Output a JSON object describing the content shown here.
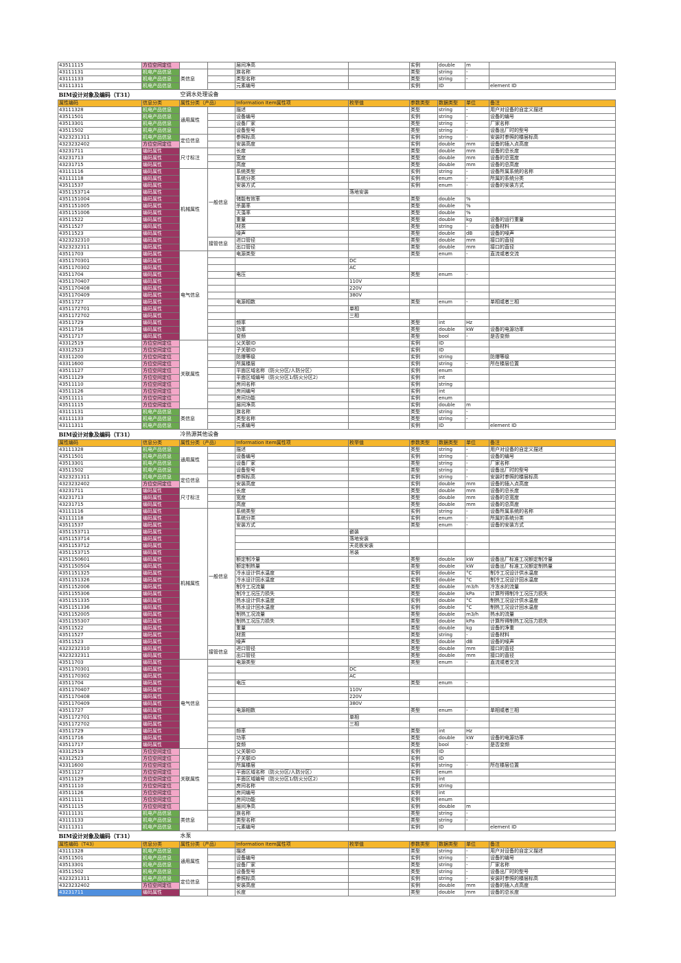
{
  "header": [
    "属性编码",
    "信息分类",
    "属性分类（产品）",
    "",
    "Information Item属性项",
    "枚举值",
    "参数类型",
    "数据类型",
    "单位",
    "备注"
  ],
  "sections": [
    {
      "title": "BIM设计对象及编码（T31）",
      "subtitle": "空调水处理设备"
    },
    {
      "title": "BIM设计对象及编码（T31）",
      "subtitle": "冷热源其他设备"
    },
    {
      "title": "BIM设计对象及编码（T31）",
      "subtitle": "水泵"
    }
  ],
  "categories": {
    "general": "通用属性",
    "position": "定位信息",
    "size": "尺寸标注",
    "mechanical": "机械属性",
    "general_info": "一般信息",
    "pipe": "接管信息",
    "electric": "电气信息",
    "relation": "关联属性",
    "class": "类信息"
  },
  "rows_top": [
    [
      "43511115",
      "方位空间定位",
      "层间净高",
      "实例",
      "double",
      "m",
      ""
    ],
    [
      "43111131",
      "机电产品信息",
      "族名称",
      "类型",
      "string",
      "-",
      ""
    ],
    [
      "43111133",
      "机电产品信息",
      "类型名称",
      "类型",
      "string",
      "-",
      ""
    ],
    [
      "43111311",
      "机电产品信息",
      "元素编号",
      "实例",
      "ID",
      "",
      "element ID"
    ]
  ],
  "rows_s1": [
    [
      "43111328",
      "机电产品信息",
      "描述",
      "",
      "类型",
      "string",
      "-",
      "用户对设备的自定义描述"
    ],
    [
      "43511501",
      "机电产品信息",
      "设备编号",
      "",
      "实例",
      "string",
      "-",
      "设备的编号"
    ],
    [
      "43513301",
      "机电产品信息",
      "设备厂家",
      "",
      "类型",
      "string",
      "-",
      "厂家名称"
    ],
    [
      "43511502",
      "机电产品信息",
      "设备型号",
      "",
      "类型",
      "string",
      "-",
      "设备出厂时的型号"
    ],
    [
      "4323231311",
      "机电产品信息",
      "参照标高",
      "",
      "实例",
      "string",
      "-",
      "安装时参照的楼层标高"
    ],
    [
      "4323232402",
      "方位空间定位",
      "安装高度",
      "",
      "实例",
      "double",
      "mm",
      "设备的插入点高度"
    ],
    [
      "43231711",
      "编码属性",
      "长度",
      "",
      "类型",
      "double",
      "mm",
      "设备的总长度"
    ],
    [
      "43231713",
      "编码属性",
      "宽度",
      "",
      "类型",
      "double",
      "mm",
      "设备的总宽度"
    ],
    [
      "43231715",
      "编码属性",
      "高度",
      "",
      "类型",
      "double",
      "mm",
      "设备的总高度"
    ],
    [
      "43111116",
      "编码属性",
      "系统类型",
      "",
      "实例",
      "string",
      "-",
      "设备所属系统的名称"
    ],
    [
      "43111118",
      "编码属性",
      "系统分类",
      "",
      "实例",
      "enum",
      "-",
      "所属的系统分类"
    ],
    [
      "43511537",
      "编码属性",
      "安装方式",
      "",
      "实例",
      "enum",
      "-",
      "设备的安装方式"
    ],
    [
      "435115371 4",
      "编码属性",
      "",
      "落地安装",
      "",
      "",
      "",
      ""
    ],
    [
      "435115100 4",
      "编码属性",
      "储能有效率",
      "",
      "类型",
      "double",
      "%",
      ""
    ],
    [
      "435115100 5",
      "编码属性",
      "杀菌率",
      "",
      "类型",
      "double",
      "%",
      ""
    ],
    [
      "435115100 6",
      "编码属性",
      "灭藻率",
      "",
      "类型",
      "double",
      "%",
      ""
    ],
    [
      "43511522",
      "编码属性",
      "重量",
      "",
      "类型",
      "double",
      "kg",
      "设备的运行重量"
    ],
    [
      "43511527",
      "编码属性",
      "材质",
      "",
      "类型",
      "string",
      "-",
      "设备材料"
    ],
    [
      "43511523",
      "编码属性",
      "噪声",
      "",
      "类型",
      "double",
      "dB",
      "设备的噪声"
    ],
    [
      "4323232310",
      "编码属性",
      "进口管径",
      "",
      "类型",
      "double",
      "mm",
      "接口的直径"
    ],
    [
      "4323232311",
      "编码属性",
      "出口管径",
      "",
      "类型",
      "double",
      "mm",
      "接口的直径"
    ],
    [
      "43511703",
      "编码属性",
      "电源类型",
      "",
      "类型",
      "enum",
      "-",
      "直流或者交流"
    ],
    [
      "435117030 1",
      "编码属性",
      "",
      "DC",
      "",
      "",
      "",
      ""
    ],
    [
      "435117030 2",
      "编码属性",
      "",
      "AC",
      "",
      "",
      "",
      ""
    ],
    [
      "43511704",
      "编码属性",
      "电压",
      "",
      "类型",
      "enum",
      "-",
      ""
    ],
    [
      "435117040 7",
      "编码属性",
      "",
      "110V",
      "",
      "",
      "",
      ""
    ],
    [
      "435117040 8",
      "编码属性",
      "",
      "220V",
      "",
      "",
      "",
      ""
    ],
    [
      "435117040 9",
      "编码属性",
      "",
      "380V",
      "",
      "",
      "",
      ""
    ],
    [
      "43511727",
      "编码属性",
      "电源相数",
      "",
      "类型",
      "enum",
      "-",
      "单相或者三相"
    ],
    [
      "435117270 1",
      "编码属性",
      "",
      "单相",
      "",
      "",
      "",
      ""
    ],
    [
      "435117270 2",
      "编码属性",
      "",
      "三相",
      "",
      "",
      "",
      ""
    ],
    [
      "43511729",
      "编码属性",
      "频率",
      "",
      "类型",
      "int",
      "Hz",
      ""
    ],
    [
      "43511716",
      "编码属性",
      "功率",
      "",
      "类型",
      "double",
      "kW",
      "设备的电源功率"
    ],
    [
      "43511717",
      "编码属性",
      "变频",
      "",
      "类型",
      "bool",
      "-",
      "是否变频"
    ],
    [
      "43312519",
      "方位空间定位",
      "父关联ID",
      "",
      "实例",
      "ID",
      "",
      ""
    ],
    [
      "43312523",
      "方位空间定位",
      "子关联ID",
      "",
      "实例",
      "ID",
      "",
      ""
    ],
    [
      "43311200",
      "方位空间定位",
      "防爆等级",
      "",
      "实例",
      "string",
      "",
      "防爆等级"
    ],
    [
      "43311600",
      "方位空间定位",
      "所属楼层",
      "",
      "实例",
      "string",
      "-",
      "所在楼层位置"
    ],
    [
      "43511127",
      "方位空间定位",
      "平面区域名称（防火分区/人防分区）",
      "",
      "实例",
      "enum",
      "",
      ""
    ],
    [
      "43511129",
      "方位空间定位",
      "平面区域编号（防火分区1/防火分区2）",
      "",
      "实例",
      "int",
      "",
      ""
    ],
    [
      "43511110",
      "方位空间定位",
      "房间名称",
      "",
      "实例",
      "string",
      "",
      ""
    ],
    [
      "43511126",
      "方位空间定位",
      "房间编号",
      "",
      "实例",
      "int",
      "",
      ""
    ],
    [
      "43511111",
      "方位空间定位",
      "房间功能",
      "",
      "实例",
      "enum",
      "",
      ""
    ],
    [
      "43511115",
      "方位空间定位",
      "层间净高",
      "",
      "实例",
      "double",
      "m",
      ""
    ],
    [
      "43111131",
      "机电产品信息",
      "族名称",
      "",
      "类型",
      "string",
      "-",
      ""
    ],
    [
      "43111133",
      "机电产品信息",
      "类型名称",
      "",
      "类型",
      "string",
      "-",
      ""
    ],
    [
      "43111311",
      "机电产品信息",
      "元素编号",
      "",
      "实例",
      "ID",
      "",
      "element ID"
    ]
  ],
  "rows_s2": [
    [
      "43111328",
      "机电产品信息",
      "描述",
      "",
      "类型",
      "string",
      "-",
      "用户对设备的自定义描述"
    ],
    [
      "43511501",
      "机电产品信息",
      "设备编号",
      "",
      "实例",
      "string",
      "-",
      "设备的编号"
    ],
    [
      "43513301",
      "机电产品信息",
      "设备厂家",
      "",
      "类型",
      "string",
      "-",
      "厂家名称"
    ],
    [
      "43511502",
      "机电产品信息",
      "设备型号",
      "",
      "类型",
      "string",
      "-",
      "设备出厂时的型号"
    ],
    [
      "4323231311",
      "机电产品信息",
      "参照标高",
      "",
      "实例",
      "string",
      "-",
      "安装时参照的楼层标高"
    ],
    [
      "4323232402",
      "方位空间定位",
      "安装高度",
      "",
      "实例",
      "double",
      "mm",
      "设备的插入点高度"
    ],
    [
      "43231711",
      "编码属性",
      "长度",
      "",
      "类型",
      "double",
      "mm",
      "设备的总长度"
    ],
    [
      "43231713",
      "编码属性",
      "宽度",
      "",
      "类型",
      "double",
      "mm",
      "设备的总宽度"
    ],
    [
      "43231715",
      "编码属性",
      "高度",
      "",
      "类型",
      "double",
      "mm",
      "设备的总高度"
    ],
    [
      "43111116",
      "编码属性",
      "系统类型",
      "",
      "实例",
      "string",
      "-",
      "设备所属系统的名称"
    ],
    [
      "43111118",
      "编码属性",
      "系统分类",
      "",
      "实例",
      "enum",
      "-",
      "所属的系统分类"
    ],
    [
      "43511537",
      "编码属性",
      "安装方式",
      "",
      "类型",
      "enum",
      "-",
      "设备的安装方式"
    ],
    [
      "435115371 1",
      "编码属性",
      "",
      "嵌装",
      "",
      "",
      "",
      ""
    ],
    [
      "435115371 4",
      "编码属性",
      "",
      "落地安装",
      "",
      "",
      "",
      ""
    ],
    [
      "435115371 2",
      "编码属性",
      "",
      "天花板安装",
      "",
      "",
      "",
      ""
    ],
    [
      "435115371 5",
      "编码属性",
      "",
      "吊装",
      "",
      "",
      "",
      ""
    ],
    [
      "435115060 1",
      "编码属性",
      "额定制冷量",
      "",
      "类型",
      "double",
      "kW",
      "设备出厂标准工况额定制冷量"
    ],
    [
      "435115050 4",
      "编码属性",
      "额定制热量",
      "",
      "类型",
      "double",
      "kW",
      "设备出厂标准工况额定制热量"
    ],
    [
      "43511513 25",
      "编码属性",
      "冷水设计供水温度",
      "",
      "实例",
      "double",
      "°C",
      "制冷工况设计供水温度"
    ],
    [
      "43511513 26",
      "编码属性",
      "冷水设计回水温度",
      "",
      "实例",
      "double",
      "°C",
      "制冷工况设计回水温度"
    ],
    [
      "435115200 6",
      "编码属性",
      "制冷工况流量",
      "",
      "类型",
      "double",
      "m3/h",
      "冷冻水的流量"
    ],
    [
      "435115530 6",
      "编码属性",
      "制冷工况压力损失",
      "",
      "类型",
      "double",
      "kPa",
      "计算所得制冷工况压力损失"
    ],
    [
      "435115133 5",
      "编码属性",
      "热水设计供水温度",
      "",
      "实例",
      "double",
      "°C",
      "制热工况设计供水温度"
    ],
    [
      "435115133 6",
      "编码属性",
      "热水设计回水温度",
      "",
      "实例",
      "double",
      "°C",
      "制热工况设计回水温度"
    ],
    [
      "435115200 5",
      "编码属性",
      "制热工况流量",
      "",
      "类型",
      "double",
      "m3/h",
      "热水的流量"
    ],
    [
      "435115530 7",
      "编码属性",
      "制热工况压力损失",
      "",
      "类型",
      "double",
      "kPa",
      "计算所得制热工况压力损失"
    ],
    [
      "43511522",
      "编码属性",
      "重量",
      "",
      "类型",
      "double",
      "kg",
      "设备的净重"
    ],
    [
      "43511527",
      "编码属性",
      "材质",
      "",
      "类型",
      "string",
      "-",
      "设备材料"
    ],
    [
      "43511523",
      "编码属性",
      "噪声",
      "",
      "类型",
      "double",
      "dB",
      "设备的噪声"
    ],
    [
      "4323232310",
      "编码属性",
      "进口管径",
      "",
      "类型",
      "double",
      "mm",
      "接口的直径"
    ],
    [
      "4323232311",
      "编码属性",
      "出口管径",
      "",
      "类型",
      "double",
      "mm",
      "接口的直径"
    ],
    [
      "43511703",
      "编码属性",
      "电源类型",
      "",
      "类型",
      "enum",
      "-",
      "直流或者交流"
    ],
    [
      "435117030 1",
      "编码属性",
      "",
      "DC",
      "",
      "",
      "",
      ""
    ],
    [
      "435117030 2",
      "编码属性",
      "",
      "AC",
      "",
      "",
      "",
      ""
    ],
    [
      "43511704",
      "编码属性",
      "电压",
      "",
      "类型",
      "enum",
      "-",
      ""
    ],
    [
      "435117040 7",
      "编码属性",
      "",
      "110V",
      "",
      "",
      "",
      ""
    ],
    [
      "435117040 8",
      "编码属性",
      "",
      "220V",
      "",
      "",
      "",
      ""
    ],
    [
      "435117040 9",
      "编码属性",
      "",
      "380V",
      "",
      "",
      "",
      ""
    ],
    [
      "43511727",
      "编码属性",
      "电源相数",
      "",
      "类型",
      "enum",
      "-",
      "单相或者三相"
    ],
    [
      "435117270 1",
      "编码属性",
      "",
      "单相",
      "",
      "",
      "",
      ""
    ],
    [
      "435117270 2",
      "编码属性",
      "",
      "三相",
      "",
      "",
      "",
      ""
    ],
    [
      "43511729",
      "编码属性",
      "频率",
      "",
      "类型",
      "int",
      "Hz",
      ""
    ],
    [
      "43511716",
      "编码属性",
      "功率",
      "",
      "类型",
      "double",
      "kW",
      "设备的电源功率"
    ],
    [
      "43511717",
      "编码属性",
      "变频",
      "",
      "类型",
      "bool",
      "-",
      "是否变频"
    ],
    [
      "43312519",
      "方位空间定位",
      "父关联ID",
      "",
      "实例",
      "ID",
      "",
      ""
    ],
    [
      "43312523",
      "方位空间定位",
      "子关联ID",
      "",
      "实例",
      "ID",
      "",
      ""
    ],
    [
      "43311600",
      "方位空间定位",
      "所属楼层",
      "",
      "实例",
      "string",
      "-",
      "所在楼层位置"
    ],
    [
      "43511127",
      "方位空间定位",
      "平面区域名称（防火分区/人防分区）",
      "",
      "实例",
      "enum",
      "",
      ""
    ],
    [
      "43511129",
      "方位空间定位",
      "平面区域编号（防火分区1/防火分区2）",
      "",
      "实例",
      "int",
      "",
      ""
    ],
    [
      "43511110",
      "方位空间定位",
      "房间名称",
      "",
      "实例",
      "string",
      "",
      ""
    ],
    [
      "43511126",
      "方位空间定位",
      "房间编号",
      "",
      "实例",
      "int",
      "",
      ""
    ],
    [
      "43511111",
      "方位空间定位",
      "房间功能",
      "",
      "实例",
      "enum",
      "",
      ""
    ],
    [
      "43511115",
      "方位空间定位",
      "层间净高",
      "",
      "实例",
      "double",
      "m",
      ""
    ],
    [
      "43111131",
      "机电产品信息",
      "族名称",
      "",
      "类型",
      "string",
      "-",
      ""
    ],
    [
      "43111133",
      "机电产品信息",
      "类型名称",
      "",
      "类型",
      "string",
      "-",
      ""
    ],
    [
      "43111311",
      "机电产品信息",
      "元素编号",
      "",
      "实例",
      "ID",
      "",
      "element ID"
    ]
  ],
  "header3": [
    "属性编码（T43）",
    "信息分类",
    "属性分类（产品）",
    "",
    "Information Item属性项",
    "枚举值",
    "参数类型",
    "数据类型",
    "单位",
    "备注"
  ],
  "rows_s3": [
    [
      "43111328",
      "机电产品信息",
      "描述",
      "",
      "类型",
      "string",
      "-",
      "用户对设备的自定义描述"
    ],
    [
      "43511501",
      "机电产品信息",
      "设备编号",
      "",
      "实例",
      "string",
      "-",
      "设备的编号"
    ],
    [
      "43513301",
      "机电产品信息",
      "设备厂家",
      "",
      "类型",
      "string",
      "-",
      "厂家名称"
    ],
    [
      "43511502",
      "机电产品信息",
      "设备型号",
      "",
      "类型",
      "string",
      "-",
      "设备出厂时的型号"
    ],
    [
      "4323231311",
      "机电产品信息",
      "参照标高",
      "",
      "实例",
      "string",
      "-",
      "安装时参照的楼层标高"
    ],
    [
      "4323232402",
      "方位空间定位",
      "安装高度",
      "",
      "实例",
      "double",
      "mm",
      "设备的插入点高度"
    ],
    [
      "43231711",
      "编码属性",
      "长度",
      "",
      "类型",
      "double",
      "mm",
      "设备的总长度"
    ]
  ]
}
